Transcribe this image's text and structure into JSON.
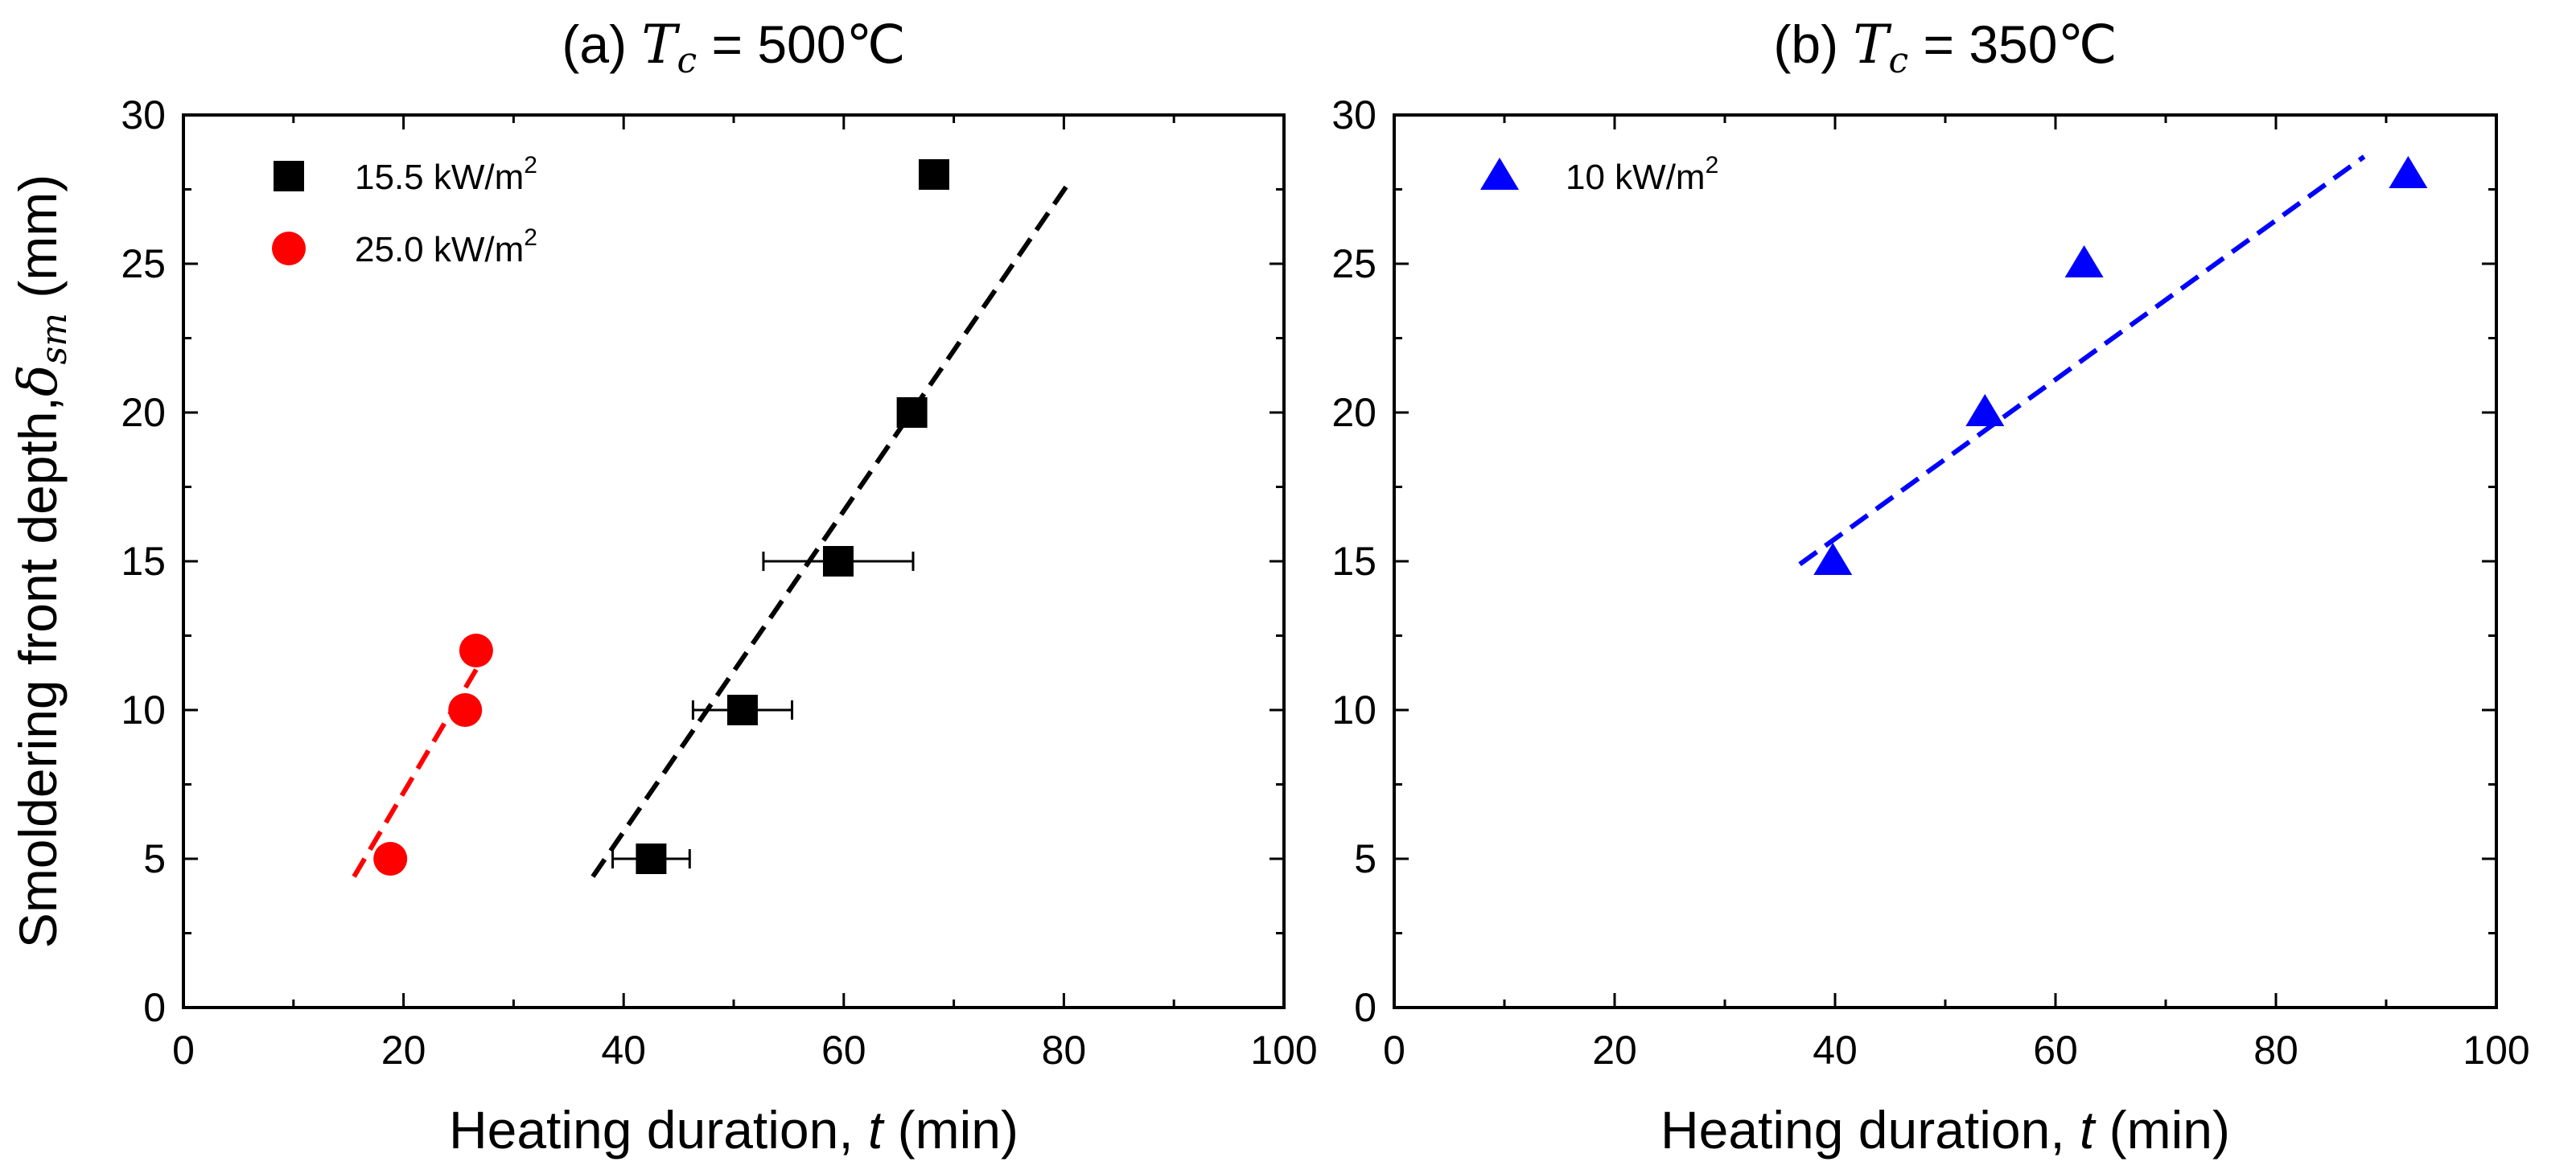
{
  "chart_data": [
    {
      "type": "scatter",
      "panel": "(a)",
      "title_prefix": "(a)",
      "title_symbol": "T",
      "title_sub": "c",
      "title_suffix": "= 500℃",
      "xlabel_main": "Heating duration,",
      "xlabel_var": "t",
      "xlabel_unit": "(min)",
      "ylabel_main": "Smoldering front depth,",
      "ylabel_var": "δ",
      "ylabel_sub": "sm",
      "ylabel_unit": "(mm)",
      "xlim": [
        0,
        100
      ],
      "ylim": [
        0,
        30
      ],
      "xticks": [
        0,
        20,
        40,
        60,
        80,
        100
      ],
      "yticks": [
        0,
        5,
        10,
        15,
        20,
        25,
        30
      ],
      "legend_position": "top-left",
      "series": [
        {
          "name": "15.5 kW/m",
          "name_sup": "2",
          "marker": "square",
          "color": "#000000",
          "points": [
            {
              "x": 42.5,
              "y": 5,
              "xerr": 3.5
            },
            {
              "x": 50.8,
              "y": 10,
              "xerr": 4.5
            },
            {
              "x": 59.5,
              "y": 15,
              "xerr": 6.8
            },
            {
              "x": 66.2,
              "y": 20
            },
            {
              "x": 68.2,
              "y": 28
            }
          ],
          "fit_line": {
            "x": [
              37.2,
              80.6
            ],
            "y": [
              4.4,
              27.8
            ]
          }
        },
        {
          "name": "25.0 kW/m",
          "name_sup": "2",
          "marker": "circle",
          "color": "#ff0000",
          "points": [
            {
              "x": 18.8,
              "y": 5
            },
            {
              "x": 25.6,
              "y": 10
            },
            {
              "x": 26.6,
              "y": 12
            }
          ],
          "fit_line": {
            "x": [
              15.5,
              27.3
            ],
            "y": [
              4.4,
              11.8
            ]
          }
        }
      ]
    },
    {
      "type": "scatter",
      "panel": "(b)",
      "title_prefix": "(b)",
      "title_symbol": "T",
      "title_sub": "c",
      "title_suffix": "= 350℃",
      "xlabel_main": "Heating duration,",
      "xlabel_var": "t",
      "xlabel_unit": "(min)",
      "xlim": [
        0,
        100
      ],
      "ylim": [
        0,
        30
      ],
      "xticks": [
        0,
        20,
        40,
        60,
        80,
        100
      ],
      "yticks": [
        0,
        5,
        10,
        15,
        20,
        25,
        30
      ],
      "legend_position": "top-left",
      "series": [
        {
          "name": "10 kW/m",
          "name_sup": "2",
          "marker": "triangle",
          "color": "#0000ff",
          "points": [
            {
              "x": 39.8,
              "y": 15
            },
            {
              "x": 53.6,
              "y": 20
            },
            {
              "x": 62.6,
              "y": 25
            },
            {
              "x": 92.0,
              "y": 28
            }
          ],
          "fit_line": {
            "x": [
              36.8,
              88.0
            ],
            "y": [
              14.9,
              28.6
            ]
          }
        }
      ]
    }
  ]
}
